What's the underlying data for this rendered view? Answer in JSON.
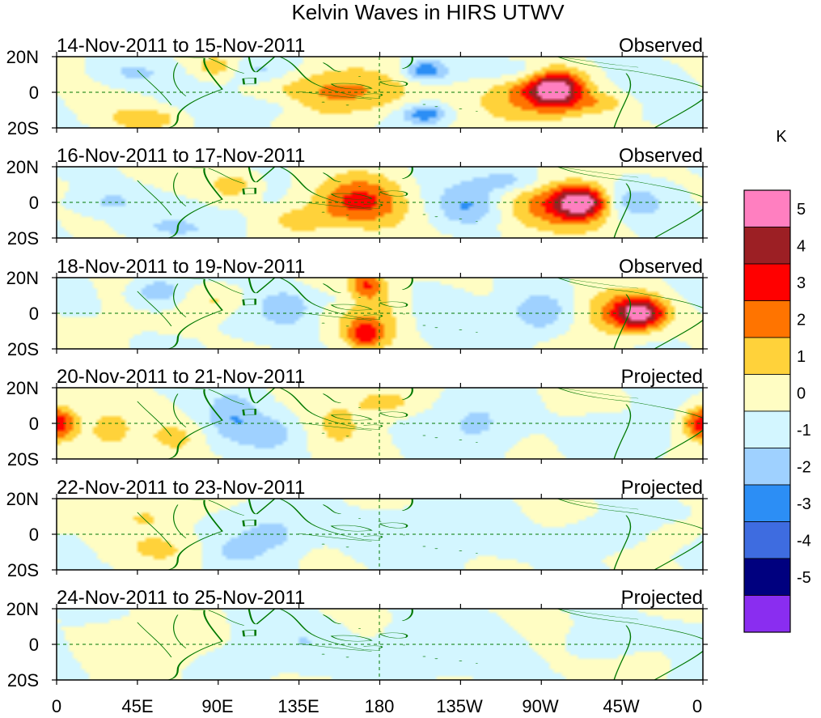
{
  "figure": {
    "title": "Kelvin Waves in HIRS UTWV",
    "colorbar_unit": "K"
  },
  "panels": [
    {
      "date_range": "14-Nov-2011 to 15-Nov-2011",
      "status": "Observed",
      "amp": 1.0,
      "shift": 0,
      "blobs": [
        [
          278,
          2,
          4.6,
          10,
          7
        ],
        [
          262,
          -2,
          2.2,
          22,
          11
        ],
        [
          90,
          14,
          1.8,
          10,
          5
        ],
        [
          160,
          0,
          2.2,
          28,
          9
        ],
        [
          50,
          -15,
          1.6,
          14,
          4
        ],
        [
          305,
          -6,
          1.2,
          12,
          4
        ],
        [
          205,
          12,
          -2.8,
          8,
          4
        ],
        [
          205,
          -12,
          -2.8,
          9,
          4
        ],
        [
          258,
          12,
          -1.6,
          16,
          5
        ],
        [
          110,
          12,
          -1.4,
          14,
          5
        ],
        [
          40,
          10,
          -1.2,
          16,
          6
        ],
        [
          122,
          -8,
          -1.0,
          16,
          5
        ]
      ]
    },
    {
      "date_range": "16-Nov-2011 to 17-Nov-2011",
      "status": "Observed",
      "amp": 1.0,
      "shift": 5,
      "blobs": [
        [
          292,
          0,
          4.8,
          10,
          6
        ],
        [
          278,
          -2,
          2.0,
          24,
          11
        ],
        [
          163,
          0,
          2.0,
          16,
          8
        ],
        [
          178,
          0,
          1.4,
          16,
          14
        ],
        [
          98,
          10,
          1.8,
          10,
          6
        ],
        [
          136,
          -10,
          1.4,
          12,
          5
        ],
        [
          252,
          12,
          -2.0,
          14,
          5
        ],
        [
          230,
          -2,
          -1.8,
          12,
          8
        ],
        [
          30,
          0,
          -1.4,
          14,
          6
        ],
        [
          320,
          0,
          -1.6,
          12,
          6
        ],
        [
          60,
          -14,
          -1.0,
          20,
          5
        ]
      ]
    },
    {
      "date_range": "18-Nov-2011 to 19-Nov-2011",
      "status": "Observed",
      "amp": 1.0,
      "shift": 9,
      "blobs": [
        [
          325,
          0,
          4.8,
          10,
          6
        ],
        [
          312,
          0,
          2.0,
          18,
          10
        ],
        [
          172,
          16,
          2.6,
          7,
          5
        ],
        [
          172,
          -12,
          2.6,
          7,
          5
        ],
        [
          176,
          0,
          1.4,
          14,
          14
        ],
        [
          56,
          12,
          -2.0,
          10,
          6
        ],
        [
          130,
          4,
          -1.6,
          12,
          8
        ],
        [
          160,
          8,
          -1.0,
          8,
          6
        ],
        [
          270,
          0,
          -2.2,
          14,
          9
        ],
        [
          90,
          8,
          1.4,
          12,
          6
        ]
      ]
    },
    {
      "date_range": "20-Nov-2011 to 21-Nov-2011",
      "status": "Projected",
      "amp": 0.55,
      "shift": 14,
      "blobs": [
        [
          3,
          0,
          2.8,
          7,
          7
        ],
        [
          357,
          0,
          2.8,
          7,
          7
        ],
        [
          28,
          -5,
          1.6,
          10,
          9
        ],
        [
          66,
          -8,
          1.4,
          10,
          6
        ],
        [
          183,
          12,
          1.8,
          12,
          5
        ],
        [
          98,
          6,
          -1.8,
          10,
          10
        ],
        [
          120,
          -5,
          -1.6,
          14,
          7
        ],
        [
          235,
          0,
          -1.4,
          14,
          10
        ],
        [
          156,
          0,
          1.2,
          12,
          10
        ],
        [
          305,
          -6,
          -1.0,
          16,
          8
        ]
      ]
    },
    {
      "date_range": "22-Nov-2011 to 23-Nov-2011",
      "status": "Projected",
      "amp": 0.4,
      "shift": 18,
      "blobs": [
        [
          120,
          0,
          -1.6,
          14,
          8
        ],
        [
          185,
          0,
          -1.0,
          20,
          10
        ],
        [
          300,
          0,
          -1.0,
          16,
          8
        ],
        [
          52,
          10,
          1.2,
          14,
          6
        ],
        [
          60,
          -8,
          1.2,
          14,
          6
        ],
        [
          345,
          0,
          0.8,
          14,
          8
        ],
        [
          100,
          -10,
          -1.0,
          10,
          6
        ]
      ]
    },
    {
      "date_range": "24-Nov-2011 to 25-Nov-2011",
      "status": "Projected",
      "amp": 0.3,
      "shift": 22,
      "blobs": [
        [
          140,
          0,
          -1.0,
          16,
          9
        ],
        [
          200,
          0,
          -1.0,
          20,
          10
        ],
        [
          300,
          0,
          -1.0,
          16,
          8
        ],
        [
          50,
          0,
          1.0,
          16,
          8
        ],
        [
          330,
          -10,
          0.9,
          12,
          6
        ]
      ]
    }
  ],
  "latitude_labels": {
    "top": "20N",
    "middle": "0",
    "bottom": "20S"
  },
  "longitude_labels": [
    "0",
    "45E",
    "90E",
    "135E",
    "180",
    "135W",
    "90W",
    "45W",
    "0"
  ],
  "colorbar": {
    "levels": [
      "5",
      "4",
      "3",
      "2",
      "1",
      "0",
      "-1",
      "-2",
      "-3",
      "-4",
      "-5"
    ],
    "colors": [
      "#ff7fc0",
      "#9c1f24",
      "#ff0000",
      "#ff7400",
      "#ffd23a",
      "#fffdc3",
      "#d3f6ff",
      "#9fd1ff",
      "#2c8ef5",
      "#3e6ce0",
      "#00007f",
      "#8a2df0"
    ]
  },
  "map_colors": {
    "coast": "#007800",
    "zero_line": "#007800",
    "frame": "#000000"
  }
}
